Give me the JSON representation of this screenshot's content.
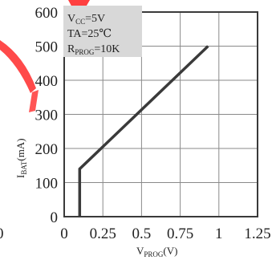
{
  "chart_data": {
    "type": "line",
    "x": [
      0.1,
      0.1,
      0.93
    ],
    "series": [
      {
        "values": [
          0,
          140,
          500
        ]
      }
    ],
    "xlim": [
      0,
      1.25
    ],
    "ylim": [
      0,
      600
    ],
    "x_ticks": [
      "0",
      "0.25",
      "0.5",
      "0.75",
      "1",
      "1.25"
    ],
    "y_ticks": [
      "0",
      "100",
      "200",
      "300",
      "400",
      "500",
      "600"
    ],
    "stray_x_tick": "0",
    "xlabel": {
      "main": "V",
      "sub": "PROG",
      "tail": "(V)"
    },
    "ylabel": {
      "main": "I",
      "sub": "BAT",
      "tail": "(mA)"
    },
    "grid": true,
    "annotation": {
      "line1": {
        "main": "V",
        "sub": "CC",
        "tail": "=5V"
      },
      "line2": "TA=25℃",
      "line3": {
        "main": "R",
        "sub": "PROG",
        "tail": "=10K"
      }
    },
    "colors": {
      "line": "#3a3a3a",
      "grid": "#8a8a8a",
      "axis": "#3a3a3a",
      "annotation_bg": "#d8d8d8",
      "watermark": "#ff2a2a"
    }
  }
}
